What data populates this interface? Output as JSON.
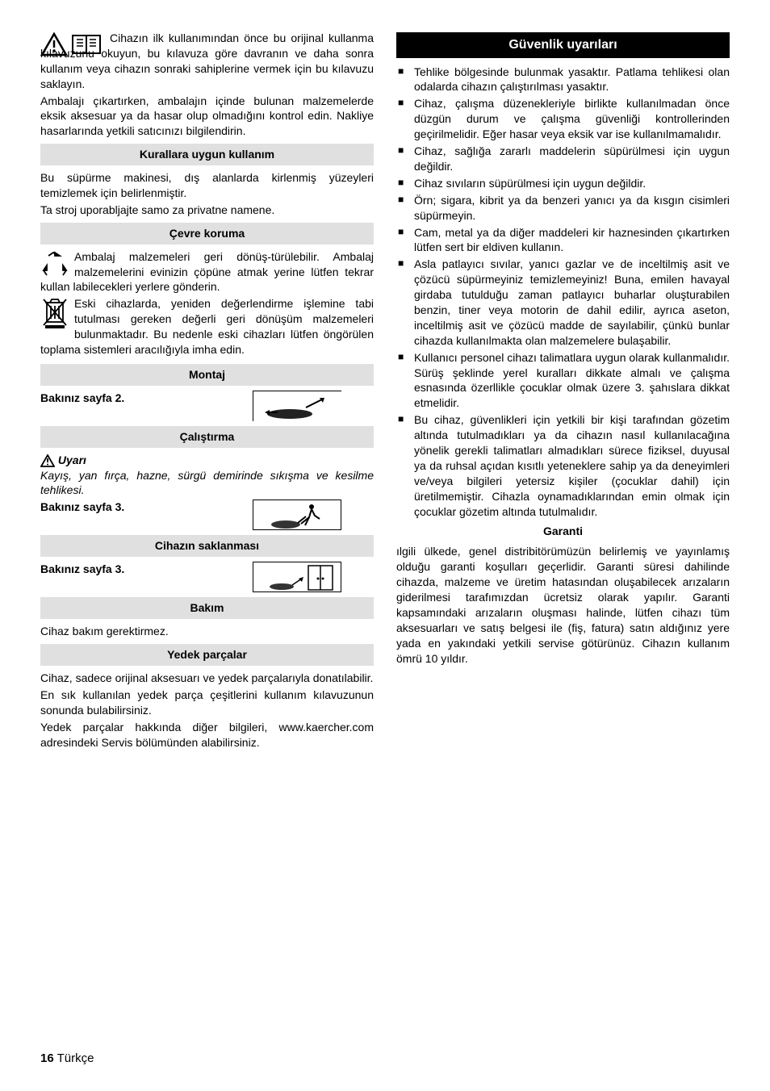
{
  "left": {
    "intro1": "Cihazın ilk kullanımından önce bu orijinal kullanma kılavuzunu okuyun, bu kılavuza göre davranın ve daha sonra kullanım veya cihazın sonraki sahiplerine vermek için bu kılavuzu saklayın.",
    "intro2": "Ambalajı çıkartırken, ambalajın içinde bulunan malzemelerde eksik aksesuar ya da hasar olup olmadığını kontrol edin. Nakliye hasarlarında yetkili satıcınızı bilgilendirin.",
    "sec1_title": "Kurallara uygun kullanım",
    "sec1_p1": "Bu süpürme makinesi, dış alanlarda kirlenmiş yüzeyleri temizlemek için belirlenmiştir.",
    "sec1_p2": "Ta stroj uporabljajte samo za privatne namene.",
    "sec2_title": "Çevre koruma",
    "sec2_p1": "Ambalaj malzemeleri geri dönüş-türülebilir. Ambalaj malzemelerini evinizin çöpüne atmak yerine lütfen tekrar kullan labilecekleri yerlere gönderin.",
    "sec2_p2": "Eski cihazlarda, yeniden değerlendirme işlemine tabi tutulması gereken değerli geri dönüşüm malzemeleri bulunmaktadır. Bu nedenle eski cihazları lütfen öngörülen toplama sistemleri aracılığıyla imha edin.",
    "sec3_title": "Montaj",
    "sec3_ref": "Bakınız sayfa 2.",
    "sec4_title": "Çalıştırma",
    "sec4_warn_label": "Uyarı",
    "sec4_warn_text": "Kayış, yan fırça, hazne, sürgü demirinde sıkışma ve kesilme tehlikesi.",
    "sec4_ref": "Bakınız sayfa 3.",
    "sec5_title": "Cihazın saklanması",
    "sec5_ref": "Bakınız sayfa 3.",
    "sec6_title": "Bakım",
    "sec6_p": "Cihaz bakım gerektirmez.",
    "sec7_title": "Yedek parçalar",
    "sec7_p1": "Cihaz, sadece orijinal aksesuarı ve yedek parçalarıyla donatılabilir.",
    "sec7_p2": "En sık kullanılan yedek parça çeşitlerini kullanım kılavuzunun sonunda bulabilirsiniz.",
    "sec7_p3": "Yedek parçalar hakkında diğer bilgileri, www.kaercher.com adresindeki Servis bölümünden alabilirsiniz."
  },
  "right": {
    "title": "Güvenlik uyarıları",
    "items": [
      "Tehlike bölgesinde bulunmak yasaktır. Patlama tehlikesi olan odalarda cihazın çalıştırılması yasaktır.",
      "Cihaz, çalışma düzenekleriyle birlikte kullanılmadan önce düzgün durum ve çalışma güvenliği kontrollerinden geçirilmelidir. Eğer hasar veya eksik var ise kullanılmamalıdır.",
      "Cihaz, sağlığa zararlı maddelerin süpürülmesi için uygun değildir.",
      "Cihaz sıvıların süpürülmesi için uygun değildir.",
      "Örn; sigara, kibrit ya da benzeri yanıcı ya da kısgın cisimleri süpürmeyin.",
      "Cam, metal ya da diğer maddeleri kir haznesinden çıkartırken lütfen sert bir eldiven kullanın.",
      "Asla patlayıcı sıvılar, yanıcı gazlar ve de inceltilmiş asit ve çözücü süpürmeyiniz temizlemeyiniz! Buna, emilen havayal girdaba tutulduğu zaman patlayıcı buharlar oluşturabilen benzin, tiner veya motorin de dahil edilir, ayrıca aseton, inceltilmiş asit ve çözücü madde de sayılabilir, çünkü bunlar cihazda kullanılmakta olan malzemelere bulaşabilir.",
      "Kullanıcı personel cihazı talimatlara uygun olarak kullanmalıdır. Sürüş şeklinde yerel kuralları dikkate almalı ve çalışma esnasında özerllikle çocuklar olmak üzere 3. şahıslara dikkat etmelidir.",
      "Bu cihaz, güvenlikleri için yetkili bir kişi tarafından gözetim altında tutulmadıkları ya da cihazın nasıl kullanılacağına yönelik gerekli talimatları almadıkları sürece fiziksel, duyusal ya da ruhsal açıdan kısıtlı yeteneklere sahip ya da deneyimleri ve/veya bilgileri yetersiz kişiler (çocuklar dahil) için üretilmemiştir. Cihazla oynamadıklarından emin olmak için çocuklar gözetim altında tutulmalıdır."
    ],
    "garanti_title": "Garanti",
    "garanti_p": "ılgili ülkede, genel distribitörümüzün belirlemiş ve yayınlamış olduğu garanti koşulları geçerlidir. Garanti süresi dahilinde cihazda, malzeme ve üretim hatasından oluşabilecek arızaların giderilmesi tarafımızdan ücretsiz olarak yapılır. Garanti kapsamındaki arızaların oluşması halinde, lütfen cihazı tüm aksesuarları ve satış belgesi ile (fiş, fatura) satın aldığınız yere yada en yakındaki yetkili servise götürünüz. Cihazın kullanım ömrü 10 yıldır."
  },
  "footer": {
    "page": "16",
    "lang": "Türkçe"
  }
}
